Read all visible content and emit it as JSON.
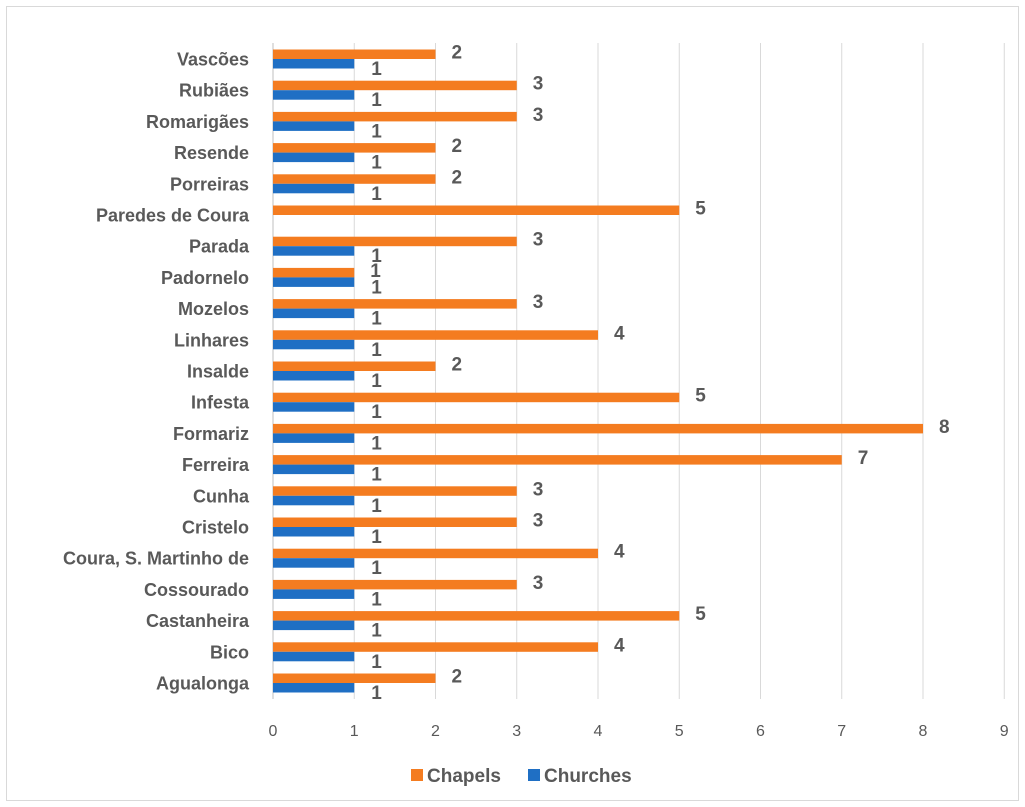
{
  "chart_data": {
    "type": "bar",
    "orientation": "horizontal",
    "categories": [
      "Vascões",
      "Rubiães",
      "Romarigães",
      "Resende",
      "Porreiras",
      "Paredes de Coura",
      "Parada",
      "Padornelo",
      "Mozelos",
      "Linhares",
      "Insalde",
      "Infesta",
      "Formariz",
      "Ferreira",
      "Cunha",
      "Cristelo",
      "Coura, S. Martinho de",
      "Cossourado",
      "Castanheira",
      "Bico",
      "Agualonga"
    ],
    "series": [
      {
        "name": "Chapels",
        "color": "#f47c20",
        "values": [
          2,
          3,
          3,
          2,
          2,
          5,
          3,
          1,
          3,
          4,
          2,
          5,
          8,
          7,
          3,
          3,
          4,
          3,
          5,
          4,
          2
        ]
      },
      {
        "name": "Churches",
        "color": "#1f6fc4",
        "values": [
          1,
          1,
          1,
          1,
          1,
          null,
          1,
          1,
          1,
          1,
          1,
          1,
          1,
          1,
          1,
          1,
          1,
          1,
          1,
          1,
          1
        ]
      }
    ],
    "xlim": [
      0,
      9
    ],
    "xticks": [
      "0",
      "1",
      "2",
      "3",
      "4",
      "5",
      "6",
      "7",
      "8",
      "9"
    ],
    "grid": true,
    "legend_position": "bottom",
    "title": "",
    "xlabel": "",
    "ylabel": ""
  }
}
